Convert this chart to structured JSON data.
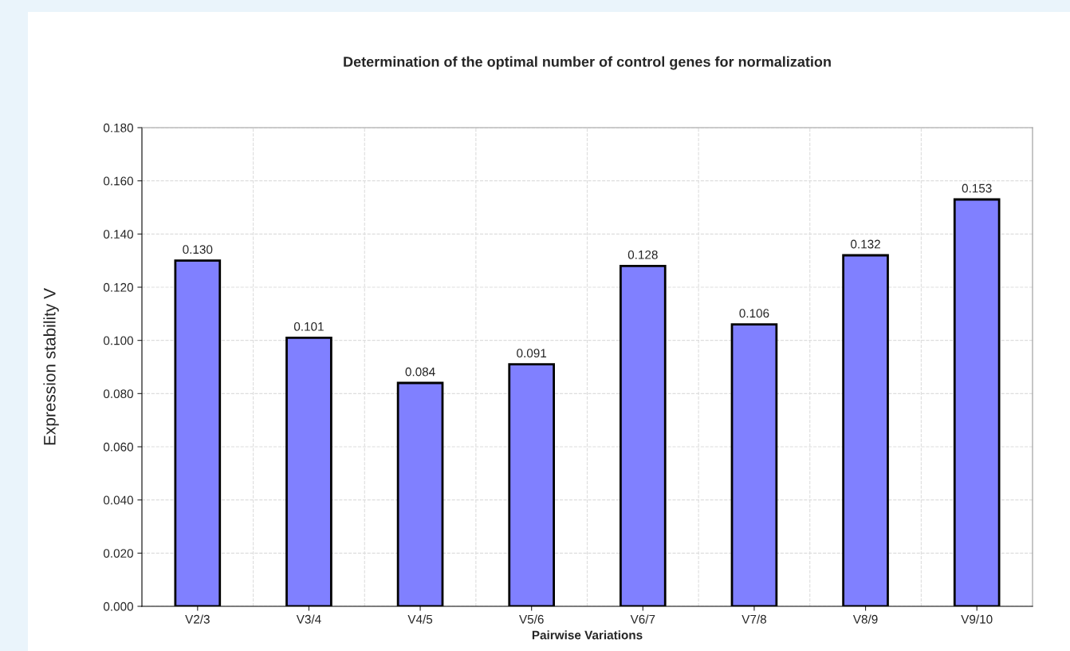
{
  "chart_data": {
    "type": "bar",
    "title": "Determination of the optimal number of control genes for normalization",
    "xlabel": "Pairwise Variations",
    "ylabel": "Expression stability V",
    "categories": [
      "V2/3",
      "V3/4",
      "V4/5",
      "V5/6",
      "V6/7",
      "V7/8",
      "V8/9",
      "V9/10"
    ],
    "values": [
      0.13,
      0.101,
      0.084,
      0.091,
      0.128,
      0.106,
      0.132,
      0.153
    ],
    "value_labels": [
      "0.130",
      "0.101",
      "0.084",
      "0.091",
      "0.128",
      "0.106",
      "0.132",
      "0.153"
    ],
    "color": "#8080ff",
    "ylim": [
      0,
      0.18
    ],
    "yticks": [
      {
        "value": 0,
        "label": "0.000"
      },
      {
        "value": 0.02,
        "label": "0.020"
      },
      {
        "value": 0.04,
        "label": "0.040"
      },
      {
        "value": 0.06,
        "label": "0.060"
      },
      {
        "value": 0.08,
        "label": "0.080"
      },
      {
        "value": 0.1,
        "label": "0.100"
      },
      {
        "value": 0.12,
        "label": "0.120"
      },
      {
        "value": 0.14,
        "label": "0.140"
      },
      {
        "value": 0.16,
        "label": "0.160"
      },
      {
        "value": 0.18,
        "label": "0.180"
      }
    ],
    "grid": true,
    "legend": false
  }
}
